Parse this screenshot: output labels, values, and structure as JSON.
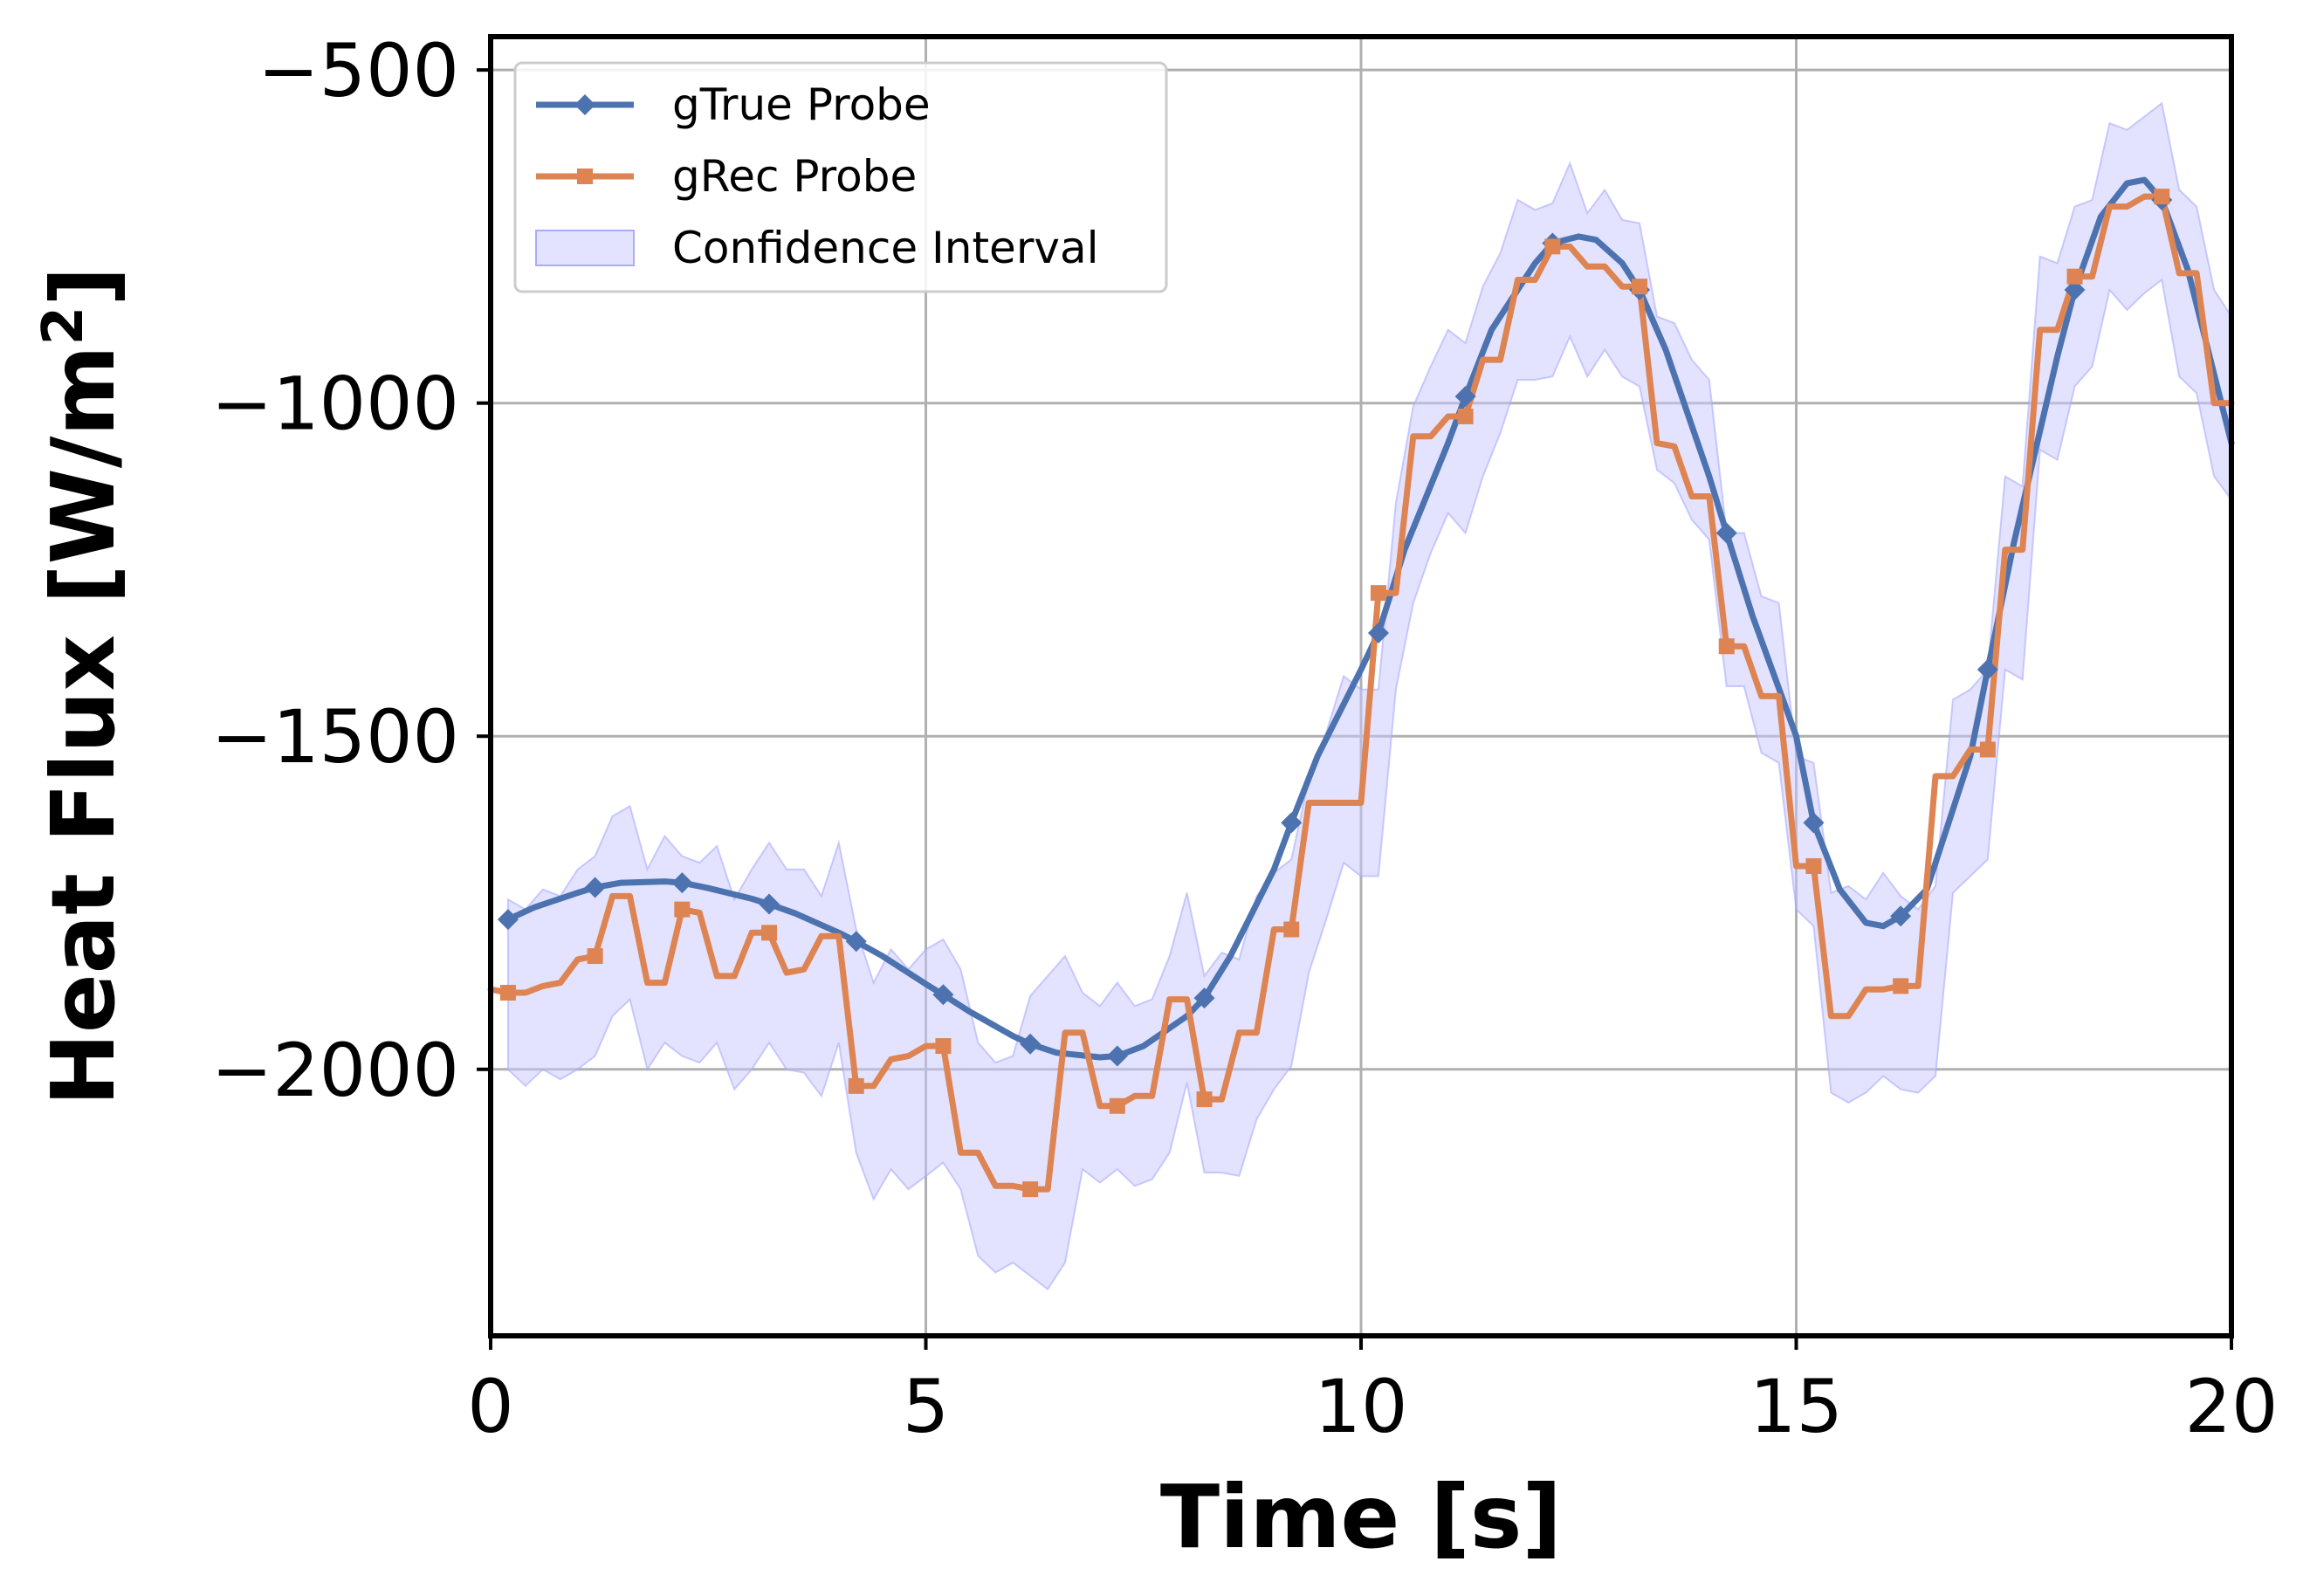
{
  "chart_data": {
    "type": "line",
    "title": "",
    "xlabel": "Time [s]",
    "ylabel_main": "Heat Flux [W/m",
    "ylabel_sup": "2",
    "ylabel_close": "]",
    "xlim": [
      0,
      20
    ],
    "ylim": [
      -2400,
      -450
    ],
    "xticks": [
      0,
      5,
      10,
      15,
      20
    ],
    "xtick_labels": [
      "0",
      "5",
      "10",
      "15",
      "20"
    ],
    "yticks": [
      -500,
      -1000,
      -1500,
      -2000
    ],
    "ytick_labels": [
      "−500",
      "−1000",
      "−1500",
      "−2000"
    ],
    "grid": true,
    "legend_position": "top-left",
    "colors": {
      "gtrue": "#4c72b0",
      "grec": "#dd8452",
      "ci_fill": "#c8c8ff",
      "ci_edge": "#aaaaff",
      "grid": "#b0b0b0"
    },
    "legend": [
      {
        "label": "gTrue Probe",
        "key": "gtrue"
      },
      {
        "label": "gRec Probe",
        "key": "grec"
      },
      {
        "label": "Confidence Interval",
        "key": "ci"
      }
    ],
    "series": [
      {
        "name": "gTrue Probe",
        "key": "gtrue",
        "marker": "diamond",
        "x": [
          0.2,
          0.5,
          1.0,
          1.2,
          1.5,
          2.0,
          2.2,
          2.5,
          3.0,
          3.2,
          3.5,
          4.0,
          4.2,
          4.5,
          5.0,
          5.2,
          5.5,
          6.0,
          6.2,
          6.5,
          7.0,
          7.2,
          7.5,
          8.0,
          8.2,
          8.5,
          9.0,
          9.2,
          9.5,
          10.0,
          10.2,
          10.5,
          11.0,
          11.2,
          11.5,
          12.0,
          12.2,
          12.5,
          12.7,
          13.0,
          13.2,
          13.5,
          14.0,
          14.2,
          14.5,
          15.0,
          15.2,
          15.5,
          15.8,
          16.0,
          16.2,
          16.5,
          17.0,
          17.2,
          17.5,
          18.0,
          18.2,
          18.5,
          18.8,
          19.0,
          19.2,
          19.5,
          20.0
        ],
        "y": [
          -1775,
          -1757,
          -1735,
          -1727,
          -1720,
          -1718,
          -1720,
          -1728,
          -1744,
          -1752,
          -1766,
          -1795,
          -1808,
          -1830,
          -1872,
          -1888,
          -1913,
          -1950,
          -1962,
          -1975,
          -1982,
          -1980,
          -1965,
          -1920,
          -1893,
          -1830,
          -1700,
          -1630,
          -1530,
          -1400,
          -1345,
          -1220,
          -1060,
          -990,
          -890,
          -790,
          -760,
          -750,
          -755,
          -790,
          -830,
          -920,
          -1110,
          -1195,
          -1320,
          -1500,
          -1630,
          -1730,
          -1780,
          -1785,
          -1770,
          -1730,
          -1530,
          -1400,
          -1210,
          -930,
          -830,
          -720,
          -670,
          -665,
          -695,
          -800,
          -1060
        ],
        "marker_indices": [
          0,
          3,
          6,
          9,
          12,
          15,
          18,
          21,
          24,
          27,
          30,
          33,
          36,
          40,
          43,
          46,
          50,
          53,
          56,
          60
        ]
      },
      {
        "name": "gRec Probe",
        "key": "grec",
        "marker": "square",
        "x": [
          0.0,
          0.2,
          0.4,
          0.6,
          0.8,
          1.0,
          1.2,
          1.4,
          1.6,
          1.8,
          2.0,
          2.2,
          2.4,
          2.6,
          2.8,
          3.0,
          3.2,
          3.4,
          3.6,
          3.8,
          4.0,
          4.2,
          4.4,
          4.6,
          4.8,
          5.0,
          5.2,
          5.4,
          5.6,
          5.8,
          6.0,
          6.2,
          6.4,
          6.6,
          6.8,
          7.0,
          7.2,
          7.4,
          7.6,
          7.8,
          8.0,
          8.2,
          8.4,
          8.6,
          8.8,
          9.0,
          9.2,
          9.4,
          9.6,
          9.8,
          10.0,
          10.2,
          10.4,
          10.6,
          10.8,
          11.0,
          11.2,
          11.4,
          11.6,
          11.8,
          12.0,
          12.2,
          12.4,
          12.6,
          12.8,
          13.0,
          13.2,
          13.4,
          13.6,
          13.8,
          14.0,
          14.2,
          14.4,
          14.6,
          14.8,
          15.0,
          15.2,
          15.4,
          15.6,
          15.8,
          16.0,
          16.2,
          16.4,
          16.6,
          16.8,
          17.0,
          17.2,
          17.4,
          17.6,
          17.8,
          18.0,
          18.2,
          18.4,
          18.6,
          18.8,
          19.0,
          19.2,
          19.4,
          19.6,
          19.8,
          20.0
        ],
        "y": [
          -1880,
          -1885,
          -1885,
          -1875,
          -1870,
          -1835,
          -1830,
          -1740,
          -1740,
          -1870,
          -1870,
          -1760,
          -1765,
          -1860,
          -1860,
          -1795,
          -1795,
          -1855,
          -1850,
          -1800,
          -1800,
          -2025,
          -2025,
          -1985,
          -1980,
          -1965,
          -1965,
          -2125,
          -2125,
          -2175,
          -2175,
          -2180,
          -2180,
          -1945,
          -1945,
          -2055,
          -2055,
          -2040,
          -2040,
          -1895,
          -1895,
          -2045,
          -2045,
          -1945,
          -1945,
          -1790,
          -1790,
          -1600,
          -1600,
          -1600,
          -1600,
          -1285,
          -1285,
          -1050,
          -1050,
          -1020,
          -1020,
          -935,
          -935,
          -815,
          -815,
          -765,
          -765,
          -795,
          -795,
          -825,
          -825,
          -1060,
          -1065,
          -1140,
          -1140,
          -1365,
          -1365,
          -1440,
          -1440,
          -1695,
          -1695,
          -1920,
          -1920,
          -1880,
          -1880,
          -1875,
          -1875,
          -1560,
          -1560,
          -1520,
          -1520,
          -1220,
          -1220,
          -890,
          -890,
          -810,
          -810,
          -705,
          -705,
          -690,
          -690,
          -805,
          -805,
          -1000,
          -1000
        ],
        "marker_indices": [
          1,
          6,
          11,
          16,
          21,
          26,
          31,
          36,
          41,
          46,
          51,
          56,
          61,
          66,
          71,
          76,
          81,
          86,
          91,
          96
        ]
      }
    ],
    "confidence_interval": {
      "name": "Confidence Interval",
      "x": [
        0.2,
        0.4,
        0.6,
        0.8,
        1.0,
        1.2,
        1.4,
        1.6,
        1.8,
        2.0,
        2.2,
        2.4,
        2.6,
        2.8,
        3.0,
        3.2,
        3.4,
        3.6,
        3.8,
        4.0,
        4.2,
        4.4,
        4.6,
        4.8,
        5.0,
        5.2,
        5.4,
        5.6,
        5.8,
        6.0,
        6.2,
        6.4,
        6.6,
        6.8,
        7.0,
        7.2,
        7.4,
        7.6,
        7.8,
        8.0,
        8.2,
        8.4,
        8.6,
        8.8,
        9.0,
        9.2,
        9.4,
        9.6,
        9.8,
        10.0,
        10.2,
        10.4,
        10.6,
        10.8,
        11.0,
        11.2,
        11.4,
        11.6,
        11.8,
        12.0,
        12.2,
        12.4,
        12.6,
        12.8,
        13.0,
        13.2,
        13.4,
        13.6,
        13.8,
        14.0,
        14.2,
        14.4,
        14.6,
        14.8,
        15.0,
        15.2,
        15.4,
        15.6,
        15.8,
        16.0,
        16.2,
        16.4,
        16.6,
        16.8,
        17.0,
        17.2,
        17.4,
        17.6,
        17.8,
        18.0,
        18.2,
        18.4,
        18.6,
        18.8,
        19.0,
        19.2,
        19.4,
        19.6,
        19.8,
        20.0
      ],
      "upper": [
        -1745,
        -1760,
        -1730,
        -1740,
        -1700,
        -1680,
        -1620,
        -1605,
        -1700,
        -1650,
        -1680,
        -1690,
        -1665,
        -1745,
        -1700,
        -1660,
        -1700,
        -1700,
        -1740,
        -1660,
        -1790,
        -1870,
        -1820,
        -1850,
        -1820,
        -1805,
        -1850,
        -1960,
        -1990,
        -1980,
        -1890,
        -1860,
        -1830,
        -1885,
        -1905,
        -1870,
        -1905,
        -1895,
        -1830,
        -1735,
        -1860,
        -1825,
        -1835,
        -1740,
        -1705,
        -1685,
        -1565,
        -1495,
        -1410,
        -1430,
        -1430,
        -1150,
        -1005,
        -945,
        -890,
        -910,
        -825,
        -775,
        -695,
        -710,
        -700,
        -640,
        -715,
        -680,
        -725,
        -730,
        -870,
        -880,
        -935,
        -965,
        -1195,
        -1195,
        -1290,
        -1300,
        -1530,
        -1540,
        -1735,
        -1725,
        -1745,
        -1705,
        -1740,
        -1760,
        -1725,
        -1445,
        -1430,
        -1400,
        -1110,
        -1125,
        -780,
        -790,
        -705,
        -695,
        -580,
        -590,
        -570,
        -550,
        -680,
        -705,
        -830,
        -870
      ],
      "lower": [
        -2000,
        -2025,
        -2000,
        -2015,
        -2000,
        -1980,
        -1920,
        -1895,
        -2000,
        -1960,
        -1980,
        -1990,
        -1960,
        -2030,
        -2000,
        -1960,
        -2000,
        -2005,
        -2040,
        -1960,
        -2125,
        -2195,
        -2150,
        -2180,
        -2160,
        -2140,
        -2180,
        -2280,
        -2305,
        -2290,
        -2310,
        -2330,
        -2290,
        -2150,
        -2170,
        -2150,
        -2175,
        -2165,
        -2125,
        -2020,
        -2155,
        -2155,
        -2160,
        -2075,
        -2030,
        -1995,
        -1855,
        -1775,
        -1690,
        -1710,
        -1710,
        -1430,
        -1300,
        -1225,
        -1165,
        -1195,
        -1110,
        -1045,
        -965,
        -965,
        -960,
        -900,
        -960,
        -920,
        -960,
        -975,
        -1100,
        -1120,
        -1175,
        -1205,
        -1425,
        -1425,
        -1525,
        -1540,
        -1760,
        -1785,
        -2035,
        -2050,
        -2035,
        -2010,
        -2030,
        -2035,
        -2010,
        -1735,
        -1710,
        -1685,
        -1400,
        -1415,
        -1070,
        -1085,
        -975,
        -945,
        -830,
        -860,
        -835,
        -815,
        -960,
        -985,
        -1110,
        -1145
      ]
    }
  }
}
